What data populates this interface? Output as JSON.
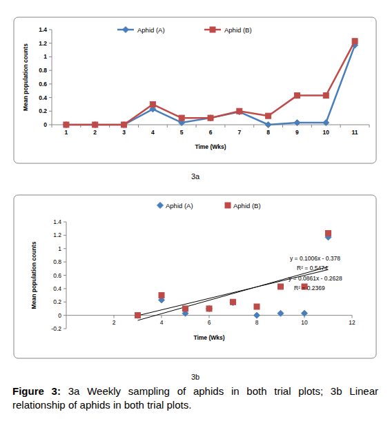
{
  "caption": {
    "label": "Figure 3:",
    "text": "3a Weekly sampling of aphids in both trial plots; 3b Linear relationship of aphids in both trial plots."
  },
  "chart_data": [
    {
      "type": "line",
      "subtitle": "3a",
      "x_label": "Time (Wks)",
      "y_label": "Mean population counts",
      "categories": [
        "1",
        "2",
        "3",
        "4",
        "5",
        "6",
        "7",
        "8",
        "9",
        "10",
        "11"
      ],
      "series": [
        {
          "name": "Aphid (A)",
          "color": "#4a7ebb",
          "marker": "diamond",
          "values": [
            0,
            0,
            0,
            0.23,
            0.03,
            0.1,
            0.19,
            0,
            0.03,
            0.03,
            1.17
          ]
        },
        {
          "name": "Aphid (B)",
          "color": "#be4b48",
          "marker": "square",
          "values": [
            0,
            0,
            0,
            0.3,
            0.1,
            0.1,
            0.2,
            0.13,
            0.43,
            0.43,
            1.23
          ]
        }
      ],
      "ylim": [
        0,
        1.4
      ],
      "yticks": [
        0,
        0.2,
        0.4,
        0.6,
        0.8,
        1,
        1.2,
        1.4
      ],
      "grid": false,
      "legend": "top"
    },
    {
      "type": "scatter",
      "subtitle": "3b",
      "x_label": "Time (Wks)",
      "y_label": "Mean population counts",
      "x": [
        3,
        4,
        5,
        6,
        7,
        8,
        9,
        10,
        11
      ],
      "series": [
        {
          "name": "Aphid (A)",
          "color": "#4a7ebb",
          "marker": "diamond",
          "values": [
            0,
            0.23,
            0.03,
            0.1,
            0.19,
            0,
            0.03,
            0.03,
            1.17
          ]
        },
        {
          "name": "Aphid (B)",
          "color": "#be4b48",
          "marker": "square",
          "values": [
            0,
            0.3,
            0.1,
            0.1,
            0.2,
            0.13,
            0.43,
            0.43,
            1.23
          ]
        }
      ],
      "trendlines": [
        {
          "slope": 0.1006,
          "intercept": -0.378,
          "x": [
            3,
            11
          ],
          "equation": "y = 0.1006x - 0.378",
          "r2": "R² = 0.5474"
        },
        {
          "slope": 0.0861,
          "intercept": -0.2628,
          "x": [
            3,
            11
          ],
          "equation": "y = 0.0861x - 0.2628",
          "r2": "R² = 0.2369"
        }
      ],
      "xlim": [
        0,
        12
      ],
      "xticks": [
        2,
        4,
        6,
        8,
        10,
        12
      ],
      "ylim": [
        -0.2,
        1.4
      ],
      "yticks": [
        -0.2,
        0,
        0.2,
        0.4,
        0.6,
        0.8,
        1,
        1.2,
        1.4
      ],
      "grid": false,
      "legend": "top"
    }
  ]
}
